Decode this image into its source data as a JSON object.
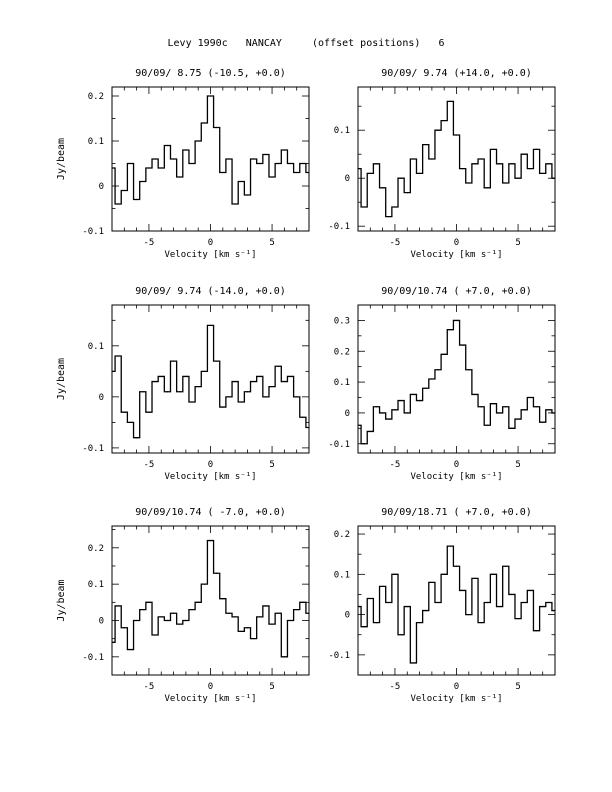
{
  "page": {
    "title": "Levy 1990c   NANCAY     (offset positions)   6"
  },
  "common": {
    "xlabel": "Velocity [km s⁻¹]",
    "ylabel": "Jy/beam",
    "xlim": [
      -8,
      8
    ],
    "xticks": [
      -5,
      0,
      5
    ],
    "line_color": "#000000"
  },
  "chart_data": [
    {
      "type": "line",
      "step": true,
      "title": "90/09/ 8.75  (-10.5, +0.0)",
      "xlabel": "Velocity [km s⁻¹]",
      "ylabel": "Jy/beam",
      "xlim": [
        -8,
        8
      ],
      "ylim": [
        -0.1,
        0.22
      ],
      "yticks": [
        -0.1,
        0,
        0.1,
        0.2
      ],
      "x": [
        -8.0,
        -7.5,
        -7.0,
        -6.5,
        -6.0,
        -5.5,
        -5.0,
        -4.5,
        -4.0,
        -3.5,
        -3.0,
        -2.5,
        -2.0,
        -1.5,
        -1.0,
        -0.5,
        0.0,
        0.5,
        1.0,
        1.5,
        2.0,
        2.5,
        3.0,
        3.5,
        4.0,
        4.5,
        5.0,
        5.5,
        6.0,
        6.5,
        7.0,
        7.5,
        8.0
      ],
      "y": [
        0.04,
        -0.04,
        -0.01,
        0.05,
        -0.03,
        0.01,
        0.04,
        0.06,
        0.04,
        0.09,
        0.06,
        0.02,
        0.08,
        0.05,
        0.1,
        0.14,
        0.2,
        0.13,
        0.03,
        0.06,
        -0.04,
        0.01,
        -0.02,
        0.06,
        0.05,
        0.07,
        0.02,
        0.05,
        0.08,
        0.05,
        0.03,
        0.05,
        0.03
      ]
    },
    {
      "type": "line",
      "step": true,
      "title": "90/09/ 9.74  (+14.0, +0.0)",
      "xlabel": "Velocity [km s⁻¹]",
      "ylabel": "Jy/beam",
      "xlim": [
        -8,
        8
      ],
      "ylim": [
        -0.11,
        0.19
      ],
      "yticks": [
        -0.1,
        0,
        0.1
      ],
      "x": [
        -8.0,
        -7.5,
        -7.0,
        -6.5,
        -6.0,
        -5.5,
        -5.0,
        -4.5,
        -4.0,
        -3.5,
        -3.0,
        -2.5,
        -2.0,
        -1.5,
        -1.0,
        -0.5,
        0.0,
        0.5,
        1.0,
        1.5,
        2.0,
        2.5,
        3.0,
        3.5,
        4.0,
        4.5,
        5.0,
        5.5,
        6.0,
        6.5,
        7.0,
        7.5,
        8.0
      ],
      "y": [
        0.02,
        -0.06,
        0.01,
        0.03,
        -0.02,
        -0.08,
        -0.06,
        0.0,
        -0.03,
        0.04,
        0.01,
        0.07,
        0.04,
        0.1,
        0.12,
        0.16,
        0.09,
        0.02,
        -0.01,
        0.03,
        0.04,
        -0.02,
        0.06,
        0.03,
        -0.01,
        0.03,
        0.0,
        0.05,
        0.02,
        0.06,
        0.01,
        0.03,
        0.0
      ]
    },
    {
      "type": "line",
      "step": true,
      "title": "90/09/ 9.74  (-14.0, +0.0)",
      "xlabel": "Velocity [km s⁻¹]",
      "ylabel": "Jy/beam",
      "xlim": [
        -8,
        8
      ],
      "ylim": [
        -0.11,
        0.18
      ],
      "yticks": [
        -0.1,
        0,
        0.1
      ],
      "x": [
        -8.0,
        -7.5,
        -7.0,
        -6.5,
        -6.0,
        -5.5,
        -5.0,
        -4.5,
        -4.0,
        -3.5,
        -3.0,
        -2.5,
        -2.0,
        -1.5,
        -1.0,
        -0.5,
        0.0,
        0.5,
        1.0,
        1.5,
        2.0,
        2.5,
        3.0,
        3.5,
        4.0,
        4.5,
        5.0,
        5.5,
        6.0,
        6.5,
        7.0,
        7.5,
        8.0
      ],
      "y": [
        0.05,
        0.08,
        -0.03,
        -0.05,
        -0.08,
        0.01,
        -0.03,
        0.03,
        0.04,
        0.01,
        0.07,
        0.01,
        0.04,
        -0.01,
        0.02,
        0.05,
        0.14,
        0.07,
        -0.02,
        0.0,
        0.03,
        -0.01,
        0.01,
        0.03,
        0.04,
        0.0,
        0.02,
        0.06,
        0.03,
        0.04,
        0.0,
        -0.04,
        -0.06
      ]
    },
    {
      "type": "line",
      "step": true,
      "title": "90/09/10.74  ( +7.0, +0.0)",
      "xlabel": "Velocity [km s⁻¹]",
      "ylabel": "Jy/beam",
      "xlim": [
        -8,
        8
      ],
      "ylim": [
        -0.13,
        0.35
      ],
      "yticks": [
        -0.1,
        0,
        0.1,
        0.2,
        0.3
      ],
      "x": [
        -8.0,
        -7.5,
        -7.0,
        -6.5,
        -6.0,
        -5.5,
        -5.0,
        -4.5,
        -4.0,
        -3.5,
        -3.0,
        -2.5,
        -2.0,
        -1.5,
        -1.0,
        -0.5,
        0.0,
        0.5,
        1.0,
        1.5,
        2.0,
        2.5,
        3.0,
        3.5,
        4.0,
        4.5,
        5.0,
        5.5,
        6.0,
        6.5,
        7.0,
        7.5,
        8.0
      ],
      "y": [
        -0.04,
        -0.1,
        -0.06,
        0.02,
        0.0,
        -0.02,
        0.01,
        0.04,
        0.0,
        0.06,
        0.04,
        0.08,
        0.11,
        0.14,
        0.19,
        0.27,
        0.3,
        0.22,
        0.14,
        0.06,
        0.02,
        -0.04,
        0.03,
        0.0,
        0.02,
        -0.05,
        -0.02,
        0.01,
        0.05,
        0.02,
        -0.03,
        0.01,
        0.0
      ]
    },
    {
      "type": "line",
      "step": true,
      "title": "90/09/10.74  ( -7.0, +0.0)",
      "xlabel": "Velocity [km s⁻¹]",
      "ylabel": "Jy/beam",
      "xlim": [
        -8,
        8
      ],
      "ylim": [
        -0.15,
        0.26
      ],
      "yticks": [
        -0.1,
        0,
        0.1,
        0.2
      ],
      "x": [
        -8.0,
        -7.5,
        -7.0,
        -6.5,
        -6.0,
        -5.5,
        -5.0,
        -4.5,
        -4.0,
        -3.5,
        -3.0,
        -2.5,
        -2.0,
        -1.5,
        -1.0,
        -0.5,
        0.0,
        0.5,
        1.0,
        1.5,
        2.0,
        2.5,
        3.0,
        3.5,
        4.0,
        4.5,
        5.0,
        5.5,
        6.0,
        6.5,
        7.0,
        7.5,
        8.0
      ],
      "y": [
        -0.06,
        0.04,
        -0.02,
        -0.08,
        0.0,
        0.03,
        0.05,
        -0.04,
        0.01,
        0.0,
        0.02,
        -0.01,
        0.0,
        0.03,
        0.05,
        0.1,
        0.22,
        0.13,
        0.06,
        0.02,
        0.01,
        -0.03,
        -0.02,
        -0.05,
        0.01,
        0.04,
        -0.01,
        0.02,
        -0.1,
        0.0,
        0.03,
        0.05,
        0.02
      ]
    },
    {
      "type": "line",
      "step": true,
      "title": "90/09/18.71  ( +7.0, +0.0)",
      "xlabel": "Velocity [km s⁻¹]",
      "ylabel": "Jy/beam",
      "xlim": [
        -8,
        8
      ],
      "ylim": [
        -0.15,
        0.22
      ],
      "yticks": [
        -0.1,
        0,
        0.1,
        0.2
      ],
      "x": [
        -8.0,
        -7.5,
        -7.0,
        -6.5,
        -6.0,
        -5.5,
        -5.0,
        -4.5,
        -4.0,
        -3.5,
        -3.0,
        -2.5,
        -2.0,
        -1.5,
        -1.0,
        -0.5,
        0.0,
        0.5,
        1.0,
        1.5,
        2.0,
        2.5,
        3.0,
        3.5,
        4.0,
        4.5,
        5.0,
        5.5,
        6.0,
        6.5,
        7.0,
        7.5,
        8.0
      ],
      "y": [
        0.02,
        -0.03,
        0.04,
        -0.02,
        0.07,
        0.03,
        0.1,
        -0.05,
        0.02,
        -0.12,
        -0.02,
        0.01,
        0.08,
        0.03,
        0.1,
        0.17,
        0.12,
        0.06,
        0.0,
        0.09,
        -0.02,
        0.03,
        0.1,
        0.02,
        0.12,
        0.05,
        -0.01,
        0.03,
        0.06,
        -0.04,
        0.02,
        0.03,
        0.01
      ]
    }
  ]
}
